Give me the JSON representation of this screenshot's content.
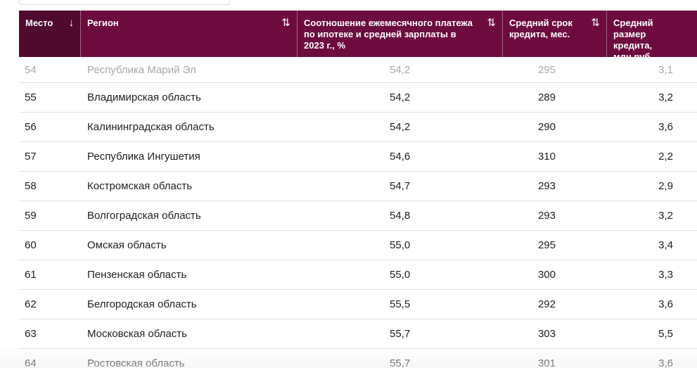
{
  "table": {
    "columns": [
      {
        "label": "Место",
        "sort_icon": "arrow-down-icon",
        "sort_glyph": "↓"
      },
      {
        "label": "Регион",
        "sort_icon": "sort-icon",
        "sort_glyph": "⇅"
      },
      {
        "label": "Соотношение ежемесячного платежа по ипотеке и средней зарплаты в 2023 г., %",
        "sort_icon": "sort-icon",
        "sort_glyph": "⇅"
      },
      {
        "label": "Средний срок кредита, мес.",
        "sort_icon": "sort-icon",
        "sort_glyph": "⇅"
      },
      {
        "label": "Средний размер кредита, млн руб.",
        "sort_icon": "",
        "sort_glyph": ""
      }
    ],
    "rows": [
      {
        "rank": "54",
        "region": "Республика Марий Эл",
        "ratio": "54,2",
        "term": "295",
        "size": "3,1"
      },
      {
        "rank": "55",
        "region": "Владимирская область",
        "ratio": "54,2",
        "term": "289",
        "size": "3,2"
      },
      {
        "rank": "56",
        "region": "Калининградская область",
        "ratio": "54,2",
        "term": "290",
        "size": "3,6"
      },
      {
        "rank": "57",
        "region": "Республика Ингушетия",
        "ratio": "54,6",
        "term": "310",
        "size": "2,2"
      },
      {
        "rank": "58",
        "region": "Костромская область",
        "ratio": "54,7",
        "term": "293",
        "size": "2,9"
      },
      {
        "rank": "59",
        "region": "Волгоградская область",
        "ratio": "54,8",
        "term": "293",
        "size": "3,2"
      },
      {
        "rank": "60",
        "region": "Омская область",
        "ratio": "55,0",
        "term": "295",
        "size": "3,4"
      },
      {
        "rank": "61",
        "region": "Пензенская область",
        "ratio": "55,0",
        "term": "300",
        "size": "3,3"
      },
      {
        "rank": "62",
        "region": "Белгородская область",
        "ratio": "55,5",
        "term": "292",
        "size": "3,6"
      },
      {
        "rank": "63",
        "region": "Московская область",
        "ratio": "55,7",
        "term": "303",
        "size": "5,5"
      },
      {
        "rank": "64",
        "region": "Ростовская область",
        "ratio": "55,7",
        "term": "301",
        "size": "3,6"
      }
    ]
  },
  "colors": {
    "header_bg": "#6d0b3e",
    "header_first_bg": "#4f0a2e",
    "header_text": "#ffffff",
    "row_text": "#1f1f1f",
    "faded_row_text": "#a9a9a9"
  }
}
